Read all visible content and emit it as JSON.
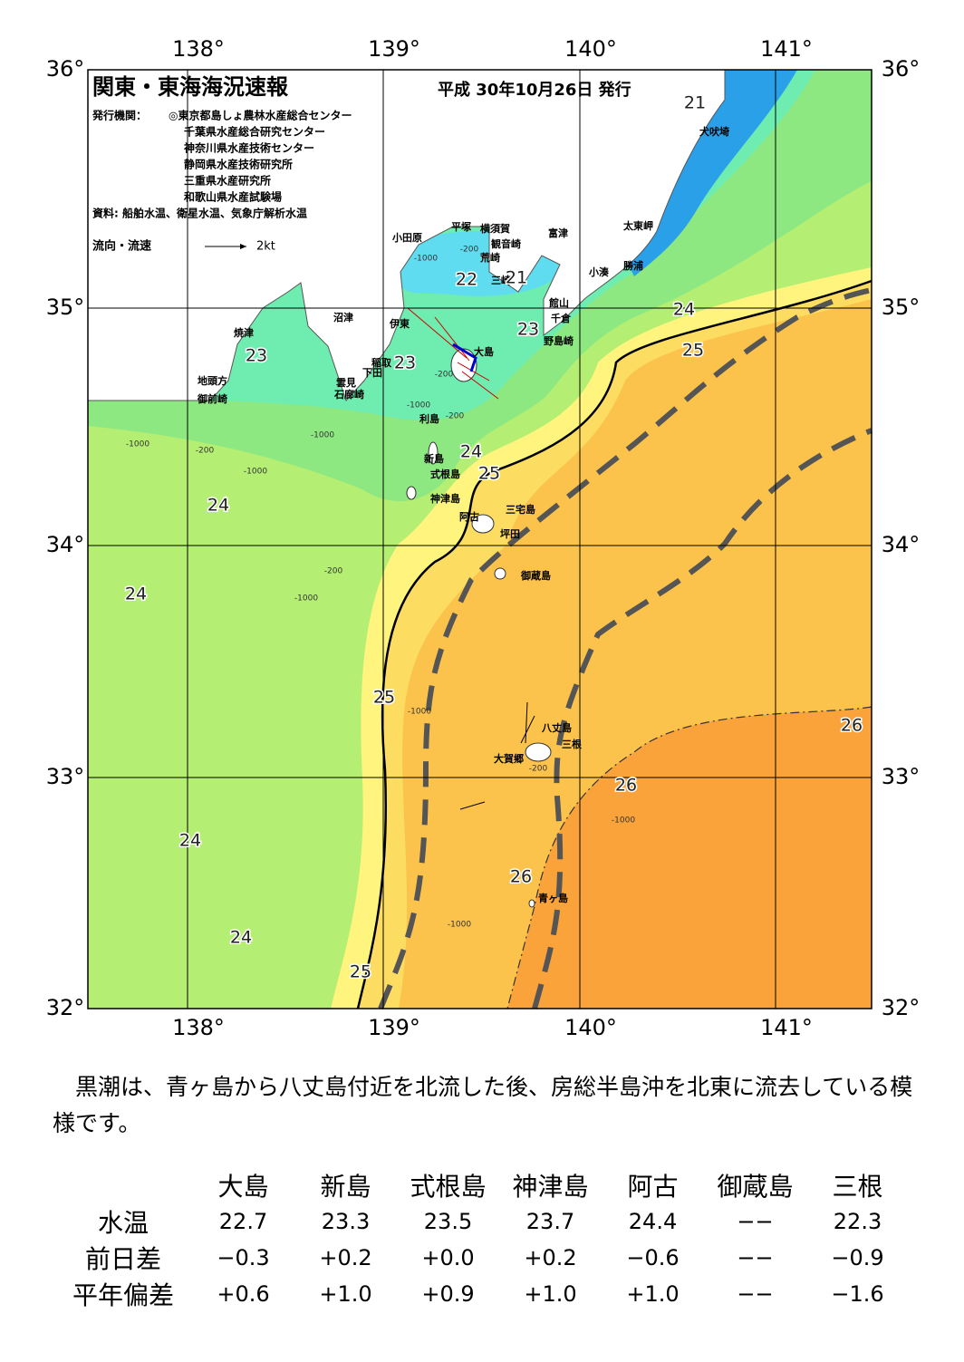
{
  "header": {
    "title": "関東・東海海況速報",
    "date": "平成 30年10月26日 発行",
    "issuer_label": "発行機関：",
    "issuers": [
      "◎東京都島しょ農林水産総合センター",
      "千葉県水産総合研究センター",
      "神奈川県水産技術センター",
      "静岡県水産技術研究所",
      "三重県水産研究所",
      "和歌山県水産試験場"
    ],
    "source": "資料: 船舶水温、衛星水温、気象庁解析水温",
    "legend": {
      "label": "流向・流速",
      "scale": "2kt"
    }
  },
  "map": {
    "lon_labels": [
      "138°",
      "139°",
      "140°",
      "141°"
    ],
    "lat_labels": [
      "36°",
      "35°",
      "34°",
      "33°",
      "32°"
    ],
    "places": [
      "小田原",
      "平塚",
      "横須賀",
      "観音崎",
      "富津",
      "荒崎",
      "三崎",
      "太東岬",
      "勝浦",
      "小湊",
      "館山",
      "千倉",
      "野島崎",
      "犬吠埼",
      "沼津",
      "伊東",
      "焼津",
      "稲取",
      "下田",
      "雲見",
      "石廊崎",
      "地頭方",
      "御前崎",
      "大島",
      "利島",
      "新島",
      "式根島",
      "神津島",
      "三宅島",
      "阿古",
      "坪田",
      "御蔵島",
      "八丈島",
      "三根",
      "大賀郷",
      "青ヶ島"
    ],
    "isotherm_labels": [
      "21",
      "22",
      "21",
      "23",
      "24",
      "25",
      "23",
      "23",
      "24",
      "25",
      "24",
      "24",
      "25",
      "26",
      "26",
      "24",
      "26",
      "24",
      "25"
    ],
    "depth_labels": [
      "-200",
      "-1000",
      "-200",
      "-1000",
      "-200",
      "-200",
      "-1000",
      "-1000",
      "-200",
      "-1000",
      "-1000",
      "-1000",
      "-200",
      "-1000",
      "-1000"
    ]
  },
  "summary": "　黒潮は、青ヶ島から八丈島付近を北流した後、房総半島沖を北東に流去している模様です。",
  "table": {
    "columns": [
      "大島",
      "新島",
      "式根島",
      "神津島",
      "阿古",
      "御蔵島",
      "三根"
    ],
    "rows": [
      {
        "label": "水温",
        "values": [
          "22.7",
          "23.3",
          "23.5",
          "23.7",
          "24.4",
          "−−",
          "22.3"
        ]
      },
      {
        "label": "前日差",
        "values": [
          "−0.3",
          "+0.2",
          "+0.0",
          "+0.2",
          "−0.6",
          "−−",
          "−0.9"
        ]
      },
      {
        "label": "平年偏差",
        "values": [
          "+0.6",
          "+1.0",
          "+0.9",
          "+1.0",
          "+1.0",
          "−−",
          "−1.6"
        ]
      }
    ]
  }
}
